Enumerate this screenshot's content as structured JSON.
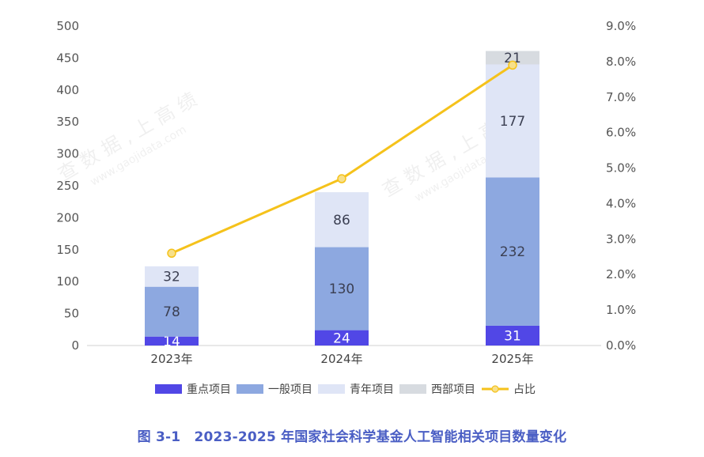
{
  "chart_data": {
    "type": "bar",
    "stacked": true,
    "categories": [
      "2023年",
      "2024年",
      "2025年"
    ],
    "series": [
      {
        "name": "重点项目",
        "values": [
          14,
          24,
          31
        ],
        "color": "#5147e6"
      },
      {
        "name": "一般项目",
        "values": [
          78,
          130,
          232
        ],
        "color": "#8da8e0"
      },
      {
        "name": "青年项目",
        "values": [
          32,
          86,
          177
        ],
        "color": "#dfe5f6"
      },
      {
        "name": "西部项目",
        "values": [
          0,
          0,
          21
        ],
        "color": "#d7dbe0"
      }
    ],
    "line_series": {
      "name": "占比",
      "values": [
        2.6,
        4.7,
        7.9
      ],
      "axis": "right",
      "unit": "%",
      "color": "#f5c21b"
    },
    "y_left": {
      "min": 0,
      "max": 500,
      "ticks": [
        "0",
        "50",
        "100",
        "150",
        "200",
        "250",
        "300",
        "350",
        "400",
        "450",
        "500"
      ]
    },
    "y_right": {
      "min": 0,
      "max": 9,
      "ticks": [
        "0.0%",
        "1.0%",
        "2.0%",
        "3.0%",
        "4.0%",
        "5.0%",
        "6.0%",
        "7.0%",
        "8.0%",
        "9.0%"
      ]
    },
    "legend": "bottom",
    "grid": false
  },
  "caption": "图 3-1　2023-2025 年国家社会科学基金人工智能相关项目数量变化",
  "watermark": {
    "text": "查 数 据 , 上 高 绩",
    "url": "www.gaojidata.com"
  }
}
